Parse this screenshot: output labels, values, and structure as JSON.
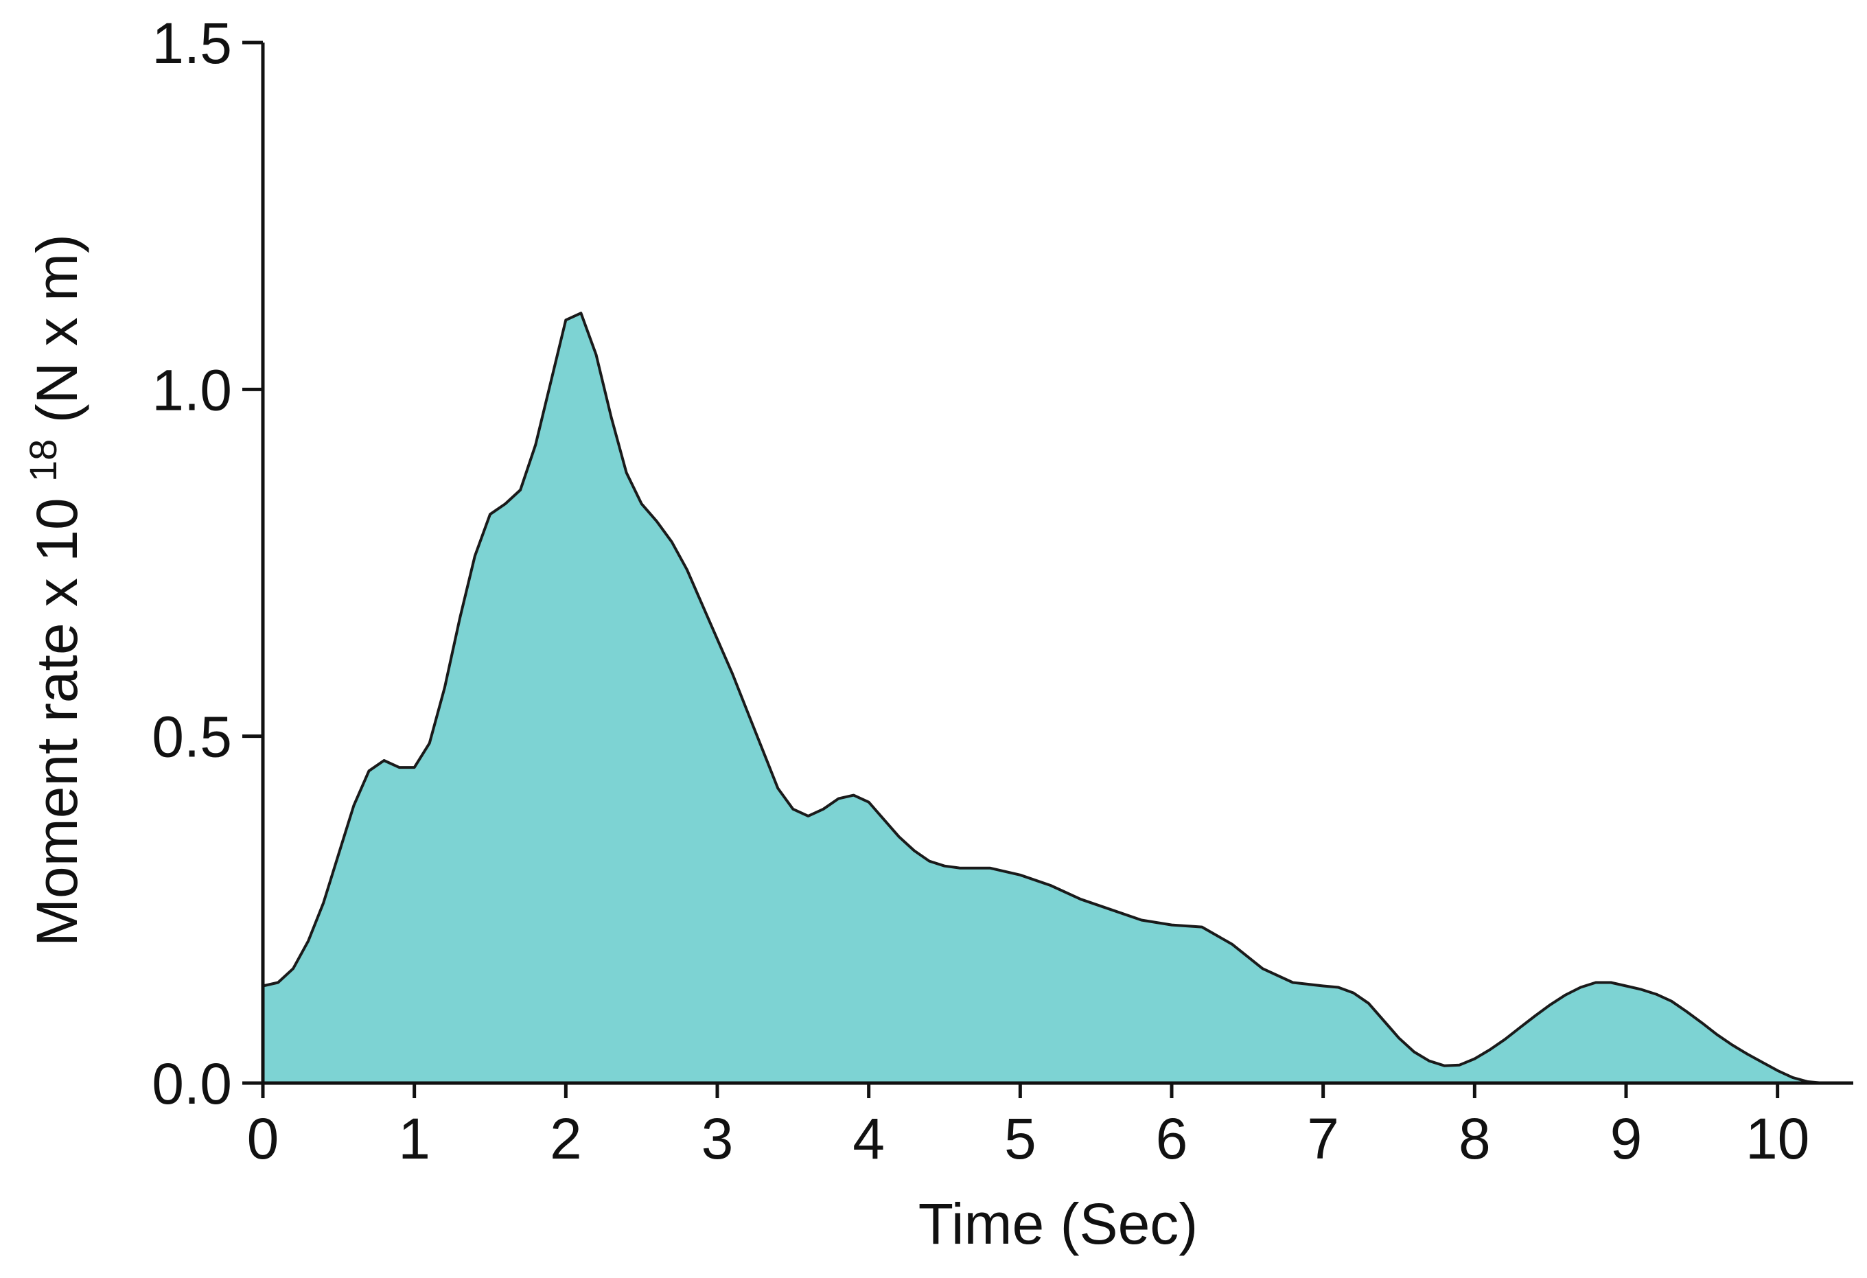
{
  "chart_data": {
    "type": "area",
    "title": "",
    "xlabel": "Time (Sec)",
    "ylabel": {
      "prefix": "Moment rate x 10",
      "exponent": "18",
      "suffix": " (N x m)"
    },
    "xlim": [
      0,
      10.5
    ],
    "ylim": [
      0,
      1.5
    ],
    "x_ticks": [
      "0",
      "1",
      "2",
      "3",
      "4",
      "5",
      "6",
      "7",
      "8",
      "9",
      "10"
    ],
    "y_ticks": [
      "0.0",
      "0.5",
      "1.0",
      "1.5"
    ],
    "grid": false,
    "legend": "none",
    "fill_color": "#7dd3d3",
    "line_color": "#1a1a1a",
    "series": [
      {
        "x": [
          0,
          0.1,
          0.2,
          0.3,
          0.4,
          0.5,
          0.6,
          0.7,
          0.8,
          0.9,
          1.0,
          1.1,
          1.2,
          1.3,
          1.4,
          1.5,
          1.6,
          1.7,
          1.8,
          1.9,
          2.0,
          2.1,
          2.2,
          2.3,
          2.4,
          2.5,
          2.6,
          2.7,
          2.8,
          2.9,
          3.0,
          3.1,
          3.2,
          3.3,
          3.4,
          3.5,
          3.6,
          3.7,
          3.8,
          3.9,
          4.0,
          4.1,
          4.2,
          4.3,
          4.4,
          4.5,
          4.6,
          4.8,
          5.0,
          5.2,
          5.4,
          5.6,
          5.8,
          6.0,
          6.2,
          6.4,
          6.6,
          6.8,
          7.0,
          7.1,
          7.2,
          7.3,
          7.4,
          7.5,
          7.6,
          7.7,
          7.8,
          7.9,
          8.0,
          8.1,
          8.2,
          8.3,
          8.4,
          8.5,
          8.6,
          8.7,
          8.8,
          8.9,
          9.0,
          9.1,
          9.2,
          9.3,
          9.4,
          9.5,
          9.6,
          9.7,
          9.8,
          9.9,
          10.0,
          10.1,
          10.2,
          10.3
        ],
        "y": [
          0.14,
          0.145,
          0.165,
          0.205,
          0.26,
          0.33,
          0.4,
          0.45,
          0.465,
          0.455,
          0.455,
          0.49,
          0.57,
          0.67,
          0.76,
          0.82,
          0.835,
          0.855,
          0.92,
          1.01,
          1.1,
          1.11,
          1.05,
          0.96,
          0.88,
          0.835,
          0.81,
          0.78,
          0.74,
          0.69,
          0.64,
          0.59,
          0.535,
          0.48,
          0.425,
          0.395,
          0.385,
          0.395,
          0.41,
          0.415,
          0.405,
          0.38,
          0.355,
          0.335,
          0.32,
          0.313,
          0.31,
          0.31,
          0.3,
          0.285,
          0.265,
          0.25,
          0.235,
          0.228,
          0.225,
          0.2,
          0.165,
          0.145,
          0.14,
          0.138,
          0.13,
          0.115,
          0.09,
          0.065,
          0.045,
          0.032,
          0.025,
          0.026,
          0.035,
          0.048,
          0.063,
          0.08,
          0.097,
          0.113,
          0.127,
          0.138,
          0.145,
          0.145,
          0.14,
          0.135,
          0.128,
          0.118,
          0.103,
          0.087,
          0.07,
          0.055,
          0.042,
          0.03,
          0.018,
          0.008,
          0.002,
          0.0
        ]
      }
    ]
  }
}
